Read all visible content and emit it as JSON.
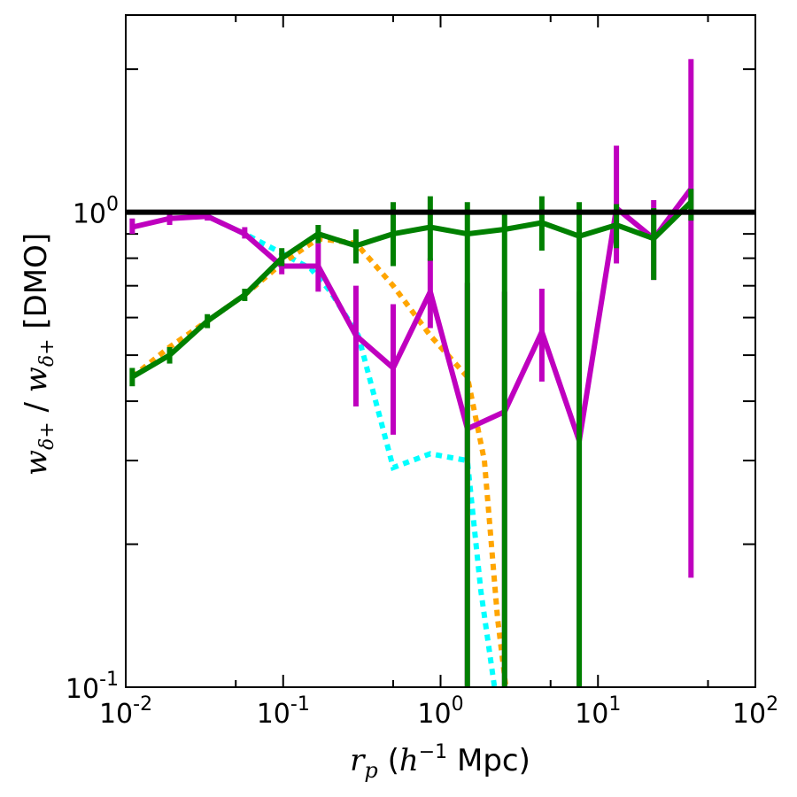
{
  "chart_data": {
    "type": "line",
    "xscale": "log",
    "yscale": "log",
    "xlim": [
      0.01,
      100
    ],
    "ylim": [
      0.1,
      2.6
    ],
    "xlabel": {
      "main": "r",
      "sub": "p",
      "open": " (",
      "h": "h",
      "sup": "−1",
      "unit": " Mpc)"
    },
    "ylabel": {
      "w1": "w",
      "sub1": "δ+",
      "slash": " / ",
      "w2": "w",
      "sub2": "δ+",
      "tag": " [DMO]"
    },
    "x_tick_labels": [
      {
        "value": 0.01,
        "base": "10",
        "exp": "-2"
      },
      {
        "value": 0.1,
        "base": "10",
        "exp": "-1"
      },
      {
        "value": 1,
        "base": "10",
        "exp": "0"
      },
      {
        "value": 10,
        "base": "10",
        "exp": "1"
      },
      {
        "value": 100,
        "base": "10",
        "exp": "2"
      }
    ],
    "y_tick_labels": [
      {
        "value": 0.1,
        "base": "10",
        "exp": "-1"
      },
      {
        "value": 1,
        "base": "10",
        "exp": "0"
      }
    ],
    "reference_line": {
      "y": 1.0,
      "color": "#000000"
    },
    "series": [
      {
        "name": "green",
        "color": "#008000",
        "style": "solid",
        "x": [
          0.011,
          0.019,
          0.033,
          0.057,
          0.098,
          0.167,
          0.29,
          0.5,
          0.86,
          1.48,
          2.55,
          4.4,
          7.6,
          13.1,
          22.6,
          39.0
        ],
        "y": [
          0.45,
          0.5,
          0.59,
          0.67,
          0.8,
          0.9,
          0.85,
          0.9,
          0.93,
          0.9,
          0.92,
          0.95,
          0.89,
          0.94,
          0.88,
          1.05
        ],
        "err_lo": [
          0.43,
          0.48,
          0.57,
          0.65,
          0.77,
          0.86,
          0.78,
          0.77,
          0.79,
          0.1,
          0.1,
          0.83,
          0.1,
          0.84,
          0.72,
          0.96
        ],
        "err_hi": [
          0.47,
          0.52,
          0.61,
          0.69,
          0.84,
          0.94,
          0.92,
          1.05,
          1.08,
          1.05,
          1.0,
          1.08,
          1.05,
          1.04,
          1.02,
          1.12
        ]
      },
      {
        "name": "magenta",
        "color": "#bf00bf",
        "style": "solid",
        "x": [
          0.011,
          0.019,
          0.033,
          0.057,
          0.098,
          0.167,
          0.29,
          0.5,
          0.86,
          1.48,
          2.55,
          4.4,
          7.6,
          13.1,
          22.6,
          39.0
        ],
        "y": [
          0.93,
          0.97,
          0.98,
          0.9,
          0.77,
          0.77,
          0.55,
          0.47,
          0.68,
          0.35,
          0.38,
          0.56,
          0.33,
          1.02,
          0.88,
          1.12
        ],
        "err_lo": [
          0.9,
          0.94,
          0.96,
          0.88,
          0.74,
          0.68,
          0.39,
          0.34,
          0.57,
          0.1,
          0.1,
          0.44,
          0.1,
          0.78,
          0.72,
          0.17
        ],
        "err_hi": [
          0.97,
          1.0,
          1.0,
          0.93,
          0.8,
          0.86,
          0.7,
          0.64,
          0.8,
          0.71,
          0.68,
          0.69,
          0.68,
          1.38,
          1.06,
          2.1
        ]
      },
      {
        "name": "orange",
        "color": "#ffa500",
        "style": "dotted",
        "x": [
          0.011,
          0.019,
          0.033,
          0.057,
          0.098,
          0.167,
          0.29,
          0.5,
          0.86,
          1.48,
          1.9,
          2.3,
          2.6
        ],
        "y": [
          0.45,
          0.52,
          0.59,
          0.67,
          0.78,
          0.88,
          0.86,
          0.7,
          0.55,
          0.45,
          0.3,
          0.14,
          0.1
        ],
        "err_lo": [],
        "err_hi": []
      },
      {
        "name": "cyan",
        "color": "#00ffff",
        "style": "dotted",
        "x": [
          0.033,
          0.057,
          0.098,
          0.15,
          0.2,
          0.3,
          0.5,
          0.86,
          1.48,
          1.8,
          2.2
        ],
        "y": [
          0.98,
          0.9,
          0.82,
          0.76,
          0.68,
          0.55,
          0.29,
          0.31,
          0.3,
          0.16,
          0.1
        ],
        "err_lo": [],
        "err_hi": []
      }
    ]
  }
}
